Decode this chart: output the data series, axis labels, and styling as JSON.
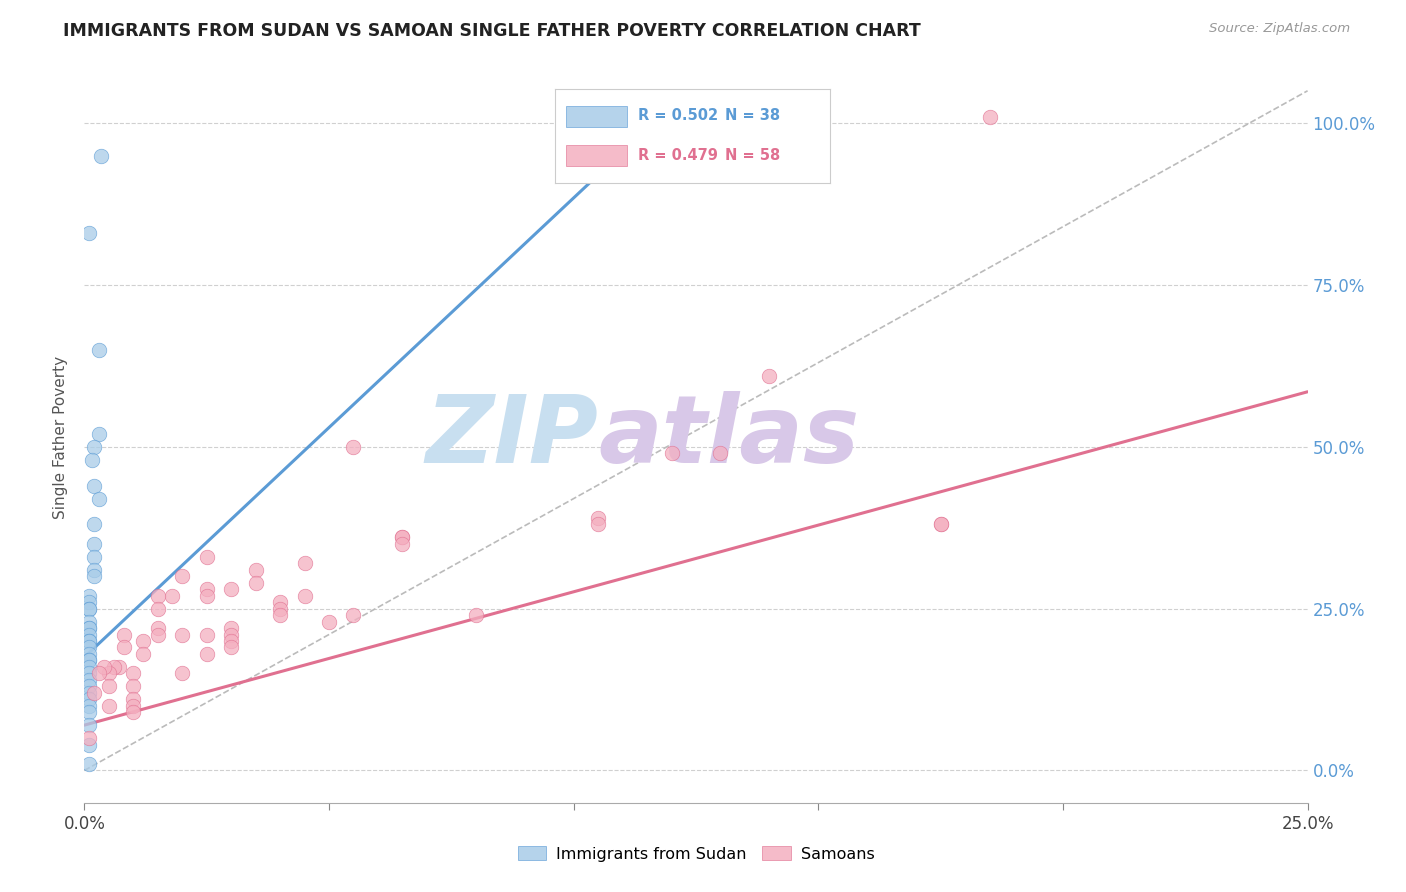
{
  "title": "IMMIGRANTS FROM SUDAN VS SAMOAN SINGLE FATHER POVERTY CORRELATION CHART",
  "source": "Source: ZipAtlas.com",
  "ylabel": "Single Father Poverty",
  "legend_blue_r": "0.502",
  "legend_blue_n": "38",
  "legend_pink_r": "0.479",
  "legend_pink_n": "58",
  "legend_label_blue": "Immigrants from Sudan",
  "legend_label_pink": "Samoans",
  "blue_color": "#a8cce8",
  "pink_color": "#f4afc0",
  "blue_line_color": "#5b9bd5",
  "pink_line_color": "#e07090",
  "watermark_zip_color": "#c8dff0",
  "watermark_atlas_color": "#d8c8e8",
  "background_color": "#ffffff",
  "grid_color": "#d0d0d0",
  "xmin": 0.0,
  "xmax": 0.25,
  "ymin": -0.05,
  "ymax": 1.08,
  "blue_x": [
    0.0035,
    0.001,
    0.003,
    0.003,
    0.002,
    0.0015,
    0.002,
    0.003,
    0.002,
    0.002,
    0.002,
    0.002,
    0.002,
    0.001,
    0.001,
    0.001,
    0.001,
    0.001,
    0.001,
    0.001,
    0.001,
    0.001,
    0.001,
    0.001,
    0.001,
    0.001,
    0.001,
    0.001,
    0.001,
    0.001,
    0.001,
    0.001,
    0.001,
    0.001,
    0.001,
    0.001,
    0.001,
    0.001
  ],
  "blue_y": [
    0.95,
    0.83,
    0.65,
    0.52,
    0.5,
    0.48,
    0.44,
    0.42,
    0.38,
    0.35,
    0.33,
    0.31,
    0.3,
    0.27,
    0.26,
    0.25,
    0.25,
    0.23,
    0.22,
    0.22,
    0.21,
    0.2,
    0.2,
    0.19,
    0.18,
    0.17,
    0.17,
    0.16,
    0.15,
    0.14,
    0.13,
    0.12,
    0.11,
    0.1,
    0.09,
    0.07,
    0.04,
    0.01
  ],
  "pink_x": [
    0.185,
    0.175,
    0.175,
    0.14,
    0.13,
    0.12,
    0.105,
    0.105,
    0.08,
    0.065,
    0.065,
    0.065,
    0.055,
    0.055,
    0.05,
    0.045,
    0.045,
    0.04,
    0.04,
    0.04,
    0.035,
    0.035,
    0.03,
    0.03,
    0.03,
    0.03,
    0.03,
    0.025,
    0.025,
    0.025,
    0.025,
    0.025,
    0.02,
    0.02,
    0.02,
    0.018,
    0.015,
    0.015,
    0.015,
    0.015,
    0.012,
    0.012,
    0.01,
    0.01,
    0.01,
    0.01,
    0.01,
    0.008,
    0.008,
    0.007,
    0.006,
    0.005,
    0.005,
    0.005,
    0.004,
    0.003,
    0.002,
    0.001
  ],
  "pink_y": [
    1.01,
    0.38,
    0.38,
    0.61,
    0.49,
    0.49,
    0.39,
    0.38,
    0.24,
    0.36,
    0.36,
    0.35,
    0.5,
    0.24,
    0.23,
    0.32,
    0.27,
    0.26,
    0.25,
    0.24,
    0.31,
    0.29,
    0.28,
    0.22,
    0.21,
    0.2,
    0.19,
    0.33,
    0.28,
    0.27,
    0.21,
    0.18,
    0.3,
    0.21,
    0.15,
    0.27,
    0.27,
    0.25,
    0.22,
    0.21,
    0.2,
    0.18,
    0.15,
    0.13,
    0.11,
    0.1,
    0.09,
    0.21,
    0.19,
    0.16,
    0.16,
    0.15,
    0.13,
    0.1,
    0.16,
    0.15,
    0.12,
    0.05
  ],
  "blue_line_x": [
    0.0,
    0.105
  ],
  "blue_line_y": [
    0.175,
    0.92
  ],
  "pink_line_x": [
    0.0,
    0.25
  ],
  "pink_line_y": [
    0.07,
    0.585
  ],
  "dashed_line_x": [
    0.0,
    0.25
  ],
  "dashed_line_y": [
    0.0,
    1.05
  ]
}
